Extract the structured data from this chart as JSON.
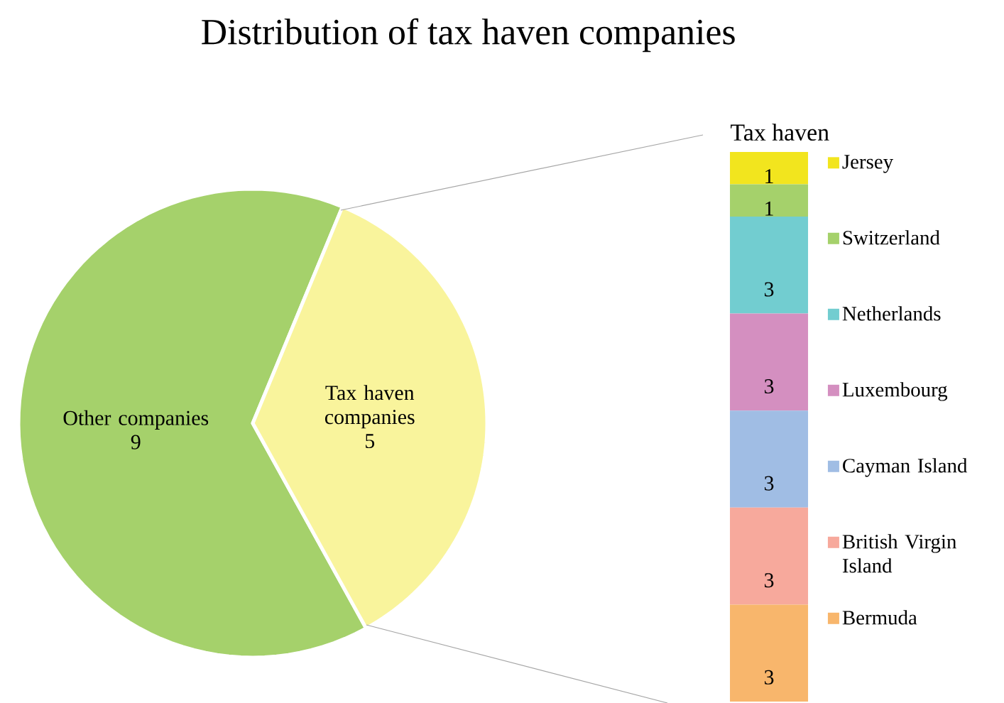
{
  "chart_data": [
    {
      "type": "pie",
      "title": "Distribution of tax haven companies",
      "categories": [
        "Other companies",
        "Tax haven companies"
      ],
      "values": [
        9,
        5
      ],
      "colors": [
        "#a5d16b",
        "#f9f49c"
      ],
      "data_labels": true
    },
    {
      "type": "bar",
      "stacked": true,
      "legend_title": "Tax haven",
      "categories": [
        null
      ],
      "legend": "right",
      "data_labels": true,
      "series": [
        {
          "name": "Bermuda",
          "color": "#f8b66c",
          "values": [
            3
          ]
        },
        {
          "name": "British Virgin Island",
          "color": "#f7a99c",
          "values": [
            3
          ]
        },
        {
          "name": "Cayman Island",
          "color": "#a0bde4",
          "values": [
            3
          ]
        },
        {
          "name": "Luxembourg",
          "color": "#d48fc0",
          "values": [
            3
          ]
        },
        {
          "name": "Netherlands",
          "color": "#72cdd0",
          "values": [
            3
          ]
        },
        {
          "name": "Switzerland",
          "color": "#a5d16b",
          "values": [
            1
          ]
        },
        {
          "name": "Jersey",
          "color": "#f2e51e",
          "values": [
            1
          ]
        }
      ]
    }
  ]
}
